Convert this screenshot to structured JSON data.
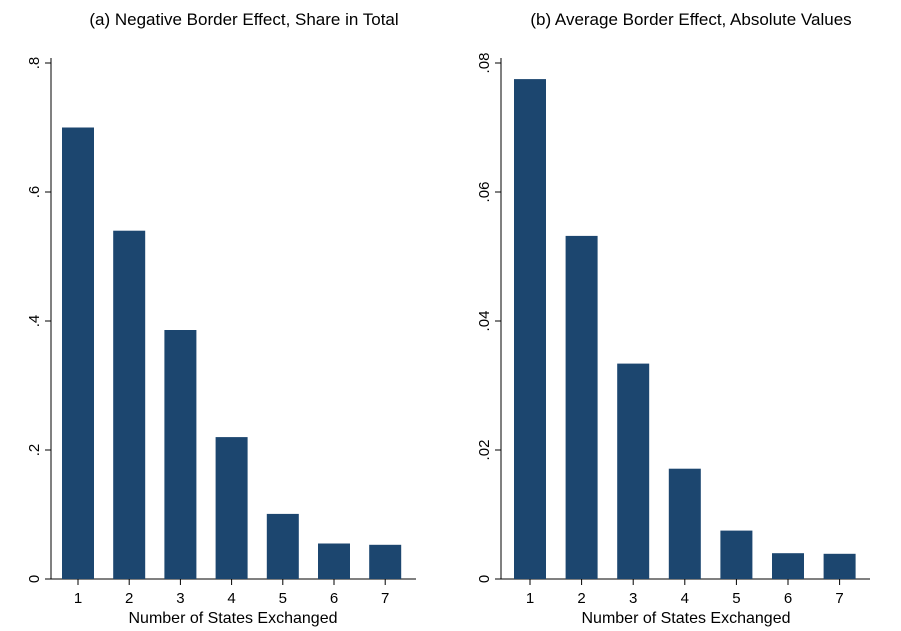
{
  "chart_data": [
    {
      "type": "bar",
      "title": "(a) Negative Border Effect, Share in Total",
      "xlabel": "Number of States Exchanged",
      "ylabel": "",
      "categories": [
        "1",
        "2",
        "3",
        "4",
        "5",
        "6",
        "7"
      ],
      "values": [
        0.7,
        0.54,
        0.386,
        0.22,
        0.101,
        0.055,
        0.053
      ],
      "ylim": [
        0,
        0.8
      ],
      "yticks": [
        0,
        0.2,
        0.4,
        0.6,
        0.8
      ],
      "ytick_labels": [
        "0",
        ".2",
        ".4",
        ".6",
        ".8"
      ],
      "grid": false,
      "bar_color": "#1c466f"
    },
    {
      "type": "bar",
      "title": "(b) Average Border Effect, Absolute Values",
      "xlabel": "Number of States Exchanged",
      "ylabel": "",
      "categories": [
        "1",
        "2",
        "3",
        "4",
        "5",
        "6",
        "7"
      ],
      "values": [
        0.0775,
        0.0532,
        0.0334,
        0.0171,
        0.0075,
        0.004,
        0.0039
      ],
      "ylim": [
        0,
        0.08
      ],
      "yticks": [
        0,
        0.02,
        0.04,
        0.06,
        0.08
      ],
      "ytick_labels": [
        "0",
        ".02",
        ".04",
        ".06",
        ".08"
      ],
      "grid": false,
      "bar_color": "#1c466f"
    }
  ]
}
